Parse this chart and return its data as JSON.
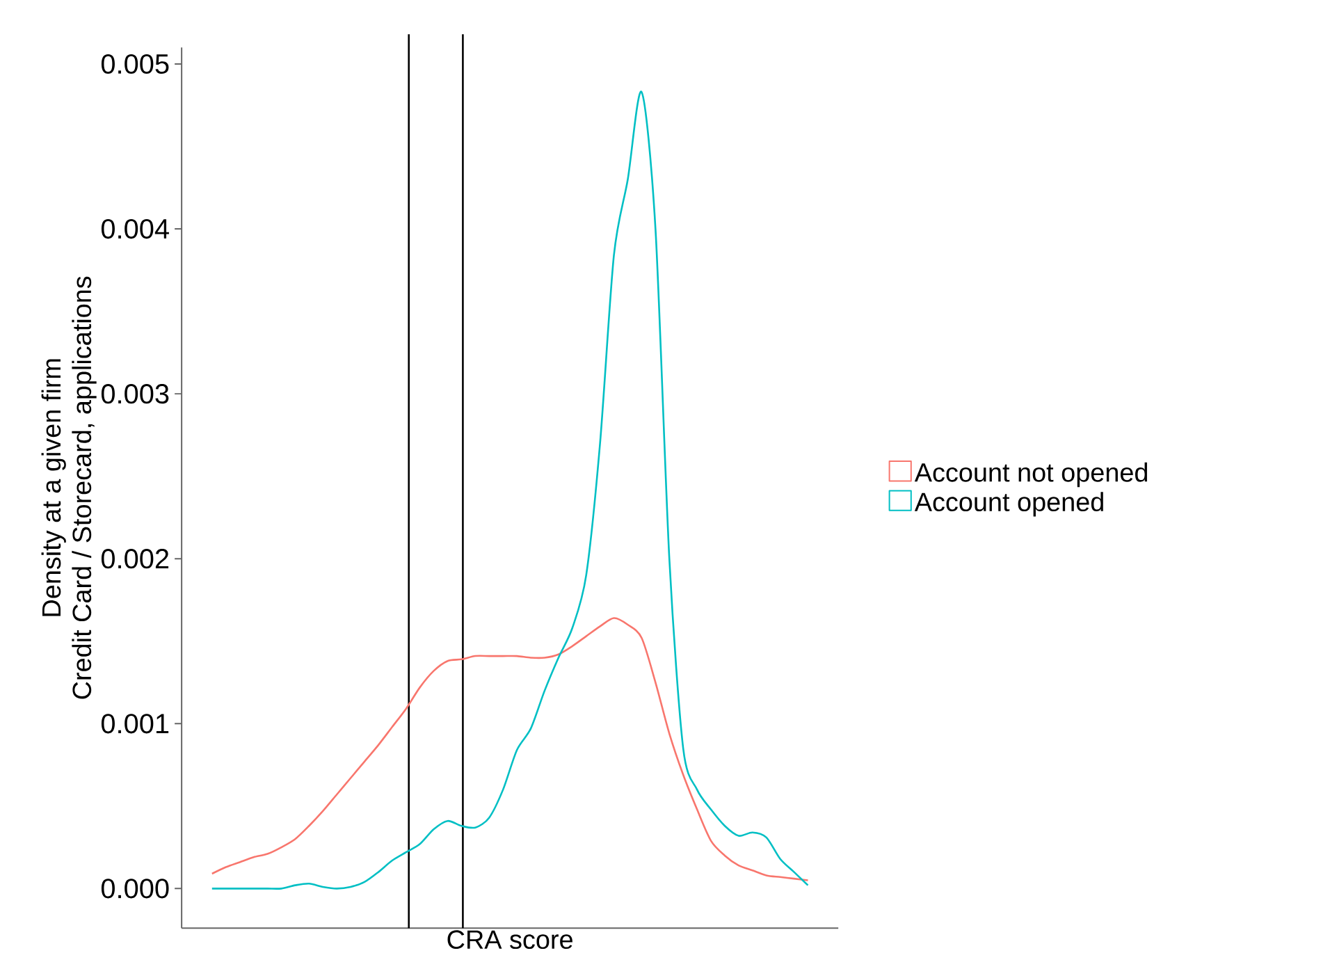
{
  "chart_data": {
    "type": "line",
    "xlabel": "CRA score",
    "ylabel": [
      "Density at a given firm",
      "Credit Card / Storecard, applications"
    ],
    "categories": [
      null,
      null,
      null,
      null,
      null,
      null,
      null,
      null,
      null,
      null,
      null,
      null,
      null,
      null,
      null,
      null,
      null,
      null,
      null,
      null,
      null,
      null,
      null,
      null,
      null,
      null,
      null,
      null,
      null,
      null,
      null,
      null,
      null,
      null,
      null,
      null,
      null,
      null,
      null,
      null,
      null,
      null,
      null,
      null
    ],
    "series": [
      {
        "name": "Account not opened",
        "color": "#f8766d",
        "values": [
          9e-05,
          0.00013,
          0.00016,
          0.00019,
          0.00021,
          0.00025,
          0.0003,
          0.00038,
          0.00047,
          0.00057,
          0.00067,
          0.00077,
          0.00087,
          0.00098,
          0.00109,
          0.00122,
          0.00132,
          0.00138,
          0.00139,
          0.00141,
          0.00141,
          0.00141,
          0.00141,
          0.0014,
          0.0014,
          0.00142,
          0.00147,
          0.00153,
          0.00159,
          0.00164,
          0.0016,
          0.00152,
          0.00125,
          0.00094,
          0.00069,
          0.00048,
          0.00029,
          0.0002,
          0.00014,
          0.00011,
          8e-05,
          7e-05,
          6e-05,
          5e-05
        ]
      },
      {
        "name": "Account opened",
        "color": "#00bfc4",
        "values": [
          0,
          0,
          0,
          0,
          0,
          0,
          2e-05,
          3e-05,
          1e-05,
          0,
          1e-05,
          4e-05,
          0.0001,
          0.00017,
          0.00022,
          0.00027,
          0.00036,
          0.00041,
          0.00038,
          0.00037,
          0.00043,
          0.0006,
          0.00084,
          0.00097,
          0.0012,
          0.0014,
          0.00158,
          0.0019,
          0.0027,
          0.00384,
          0.0043,
          0.00483,
          0.004,
          0.002,
          0.00085,
          0.0006,
          0.00048,
          0.00038,
          0.00032,
          0.00034,
          0.00031,
          0.00018,
          0.0001,
          2e-05
        ]
      }
    ],
    "ylim": [
      -0.00024,
      0.0051
    ],
    "yticks": [
      {
        "value": 0,
        "label": "0.000"
      },
      {
        "value": 0.001,
        "label": "0.001"
      },
      {
        "value": 0.002,
        "label": "0.002"
      },
      {
        "value": 0.003,
        "label": "0.003"
      },
      {
        "value": 0.004,
        "label": "0.004"
      },
      {
        "value": 0.005,
        "label": "0.005"
      }
    ],
    "legend": "right",
    "grid": false
  }
}
